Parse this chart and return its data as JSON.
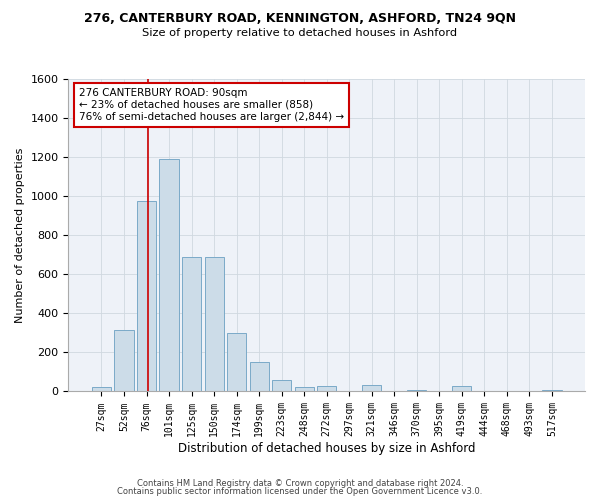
{
  "title1": "276, CANTERBURY ROAD, KENNINGTON, ASHFORD, TN24 9QN",
  "title2": "Size of property relative to detached houses in Ashford",
  "xlabel": "Distribution of detached houses by size in Ashford",
  "ylabel": "Number of detached properties",
  "footnote1": "Contains HM Land Registry data © Crown copyright and database right 2024.",
  "footnote2": "Contains public sector information licensed under the Open Government Licence v3.0.",
  "categories": [
    "27sqm",
    "52sqm",
    "76sqm",
    "101sqm",
    "125sqm",
    "150sqm",
    "174sqm",
    "199sqm",
    "223sqm",
    "248sqm",
    "272sqm",
    "297sqm",
    "321sqm",
    "346sqm",
    "370sqm",
    "395sqm",
    "419sqm",
    "444sqm",
    "468sqm",
    "493sqm",
    "517sqm"
  ],
  "values": [
    25,
    315,
    975,
    1190,
    690,
    690,
    300,
    150,
    60,
    25,
    30,
    0,
    35,
    0,
    5,
    0,
    30,
    0,
    0,
    0,
    5
  ],
  "bar_color": "#ccdce8",
  "bar_edge_color": "#7aaac8",
  "grid_color": "#d0d8e0",
  "bg_color": "#eef2f8",
  "annotation_text": "276 CANTERBURY ROAD: 90sqm\n← 23% of detached houses are smaller (858)\n76% of semi-detached houses are larger (2,844) →",
  "annotation_box_color": "#ffffff",
  "annotation_edge_color": "#cc0000",
  "red_line_color": "#cc0000",
  "ylim": [
    0,
    1600
  ],
  "yticks": [
    0,
    200,
    400,
    600,
    800,
    1000,
    1200,
    1400,
    1600
  ]
}
